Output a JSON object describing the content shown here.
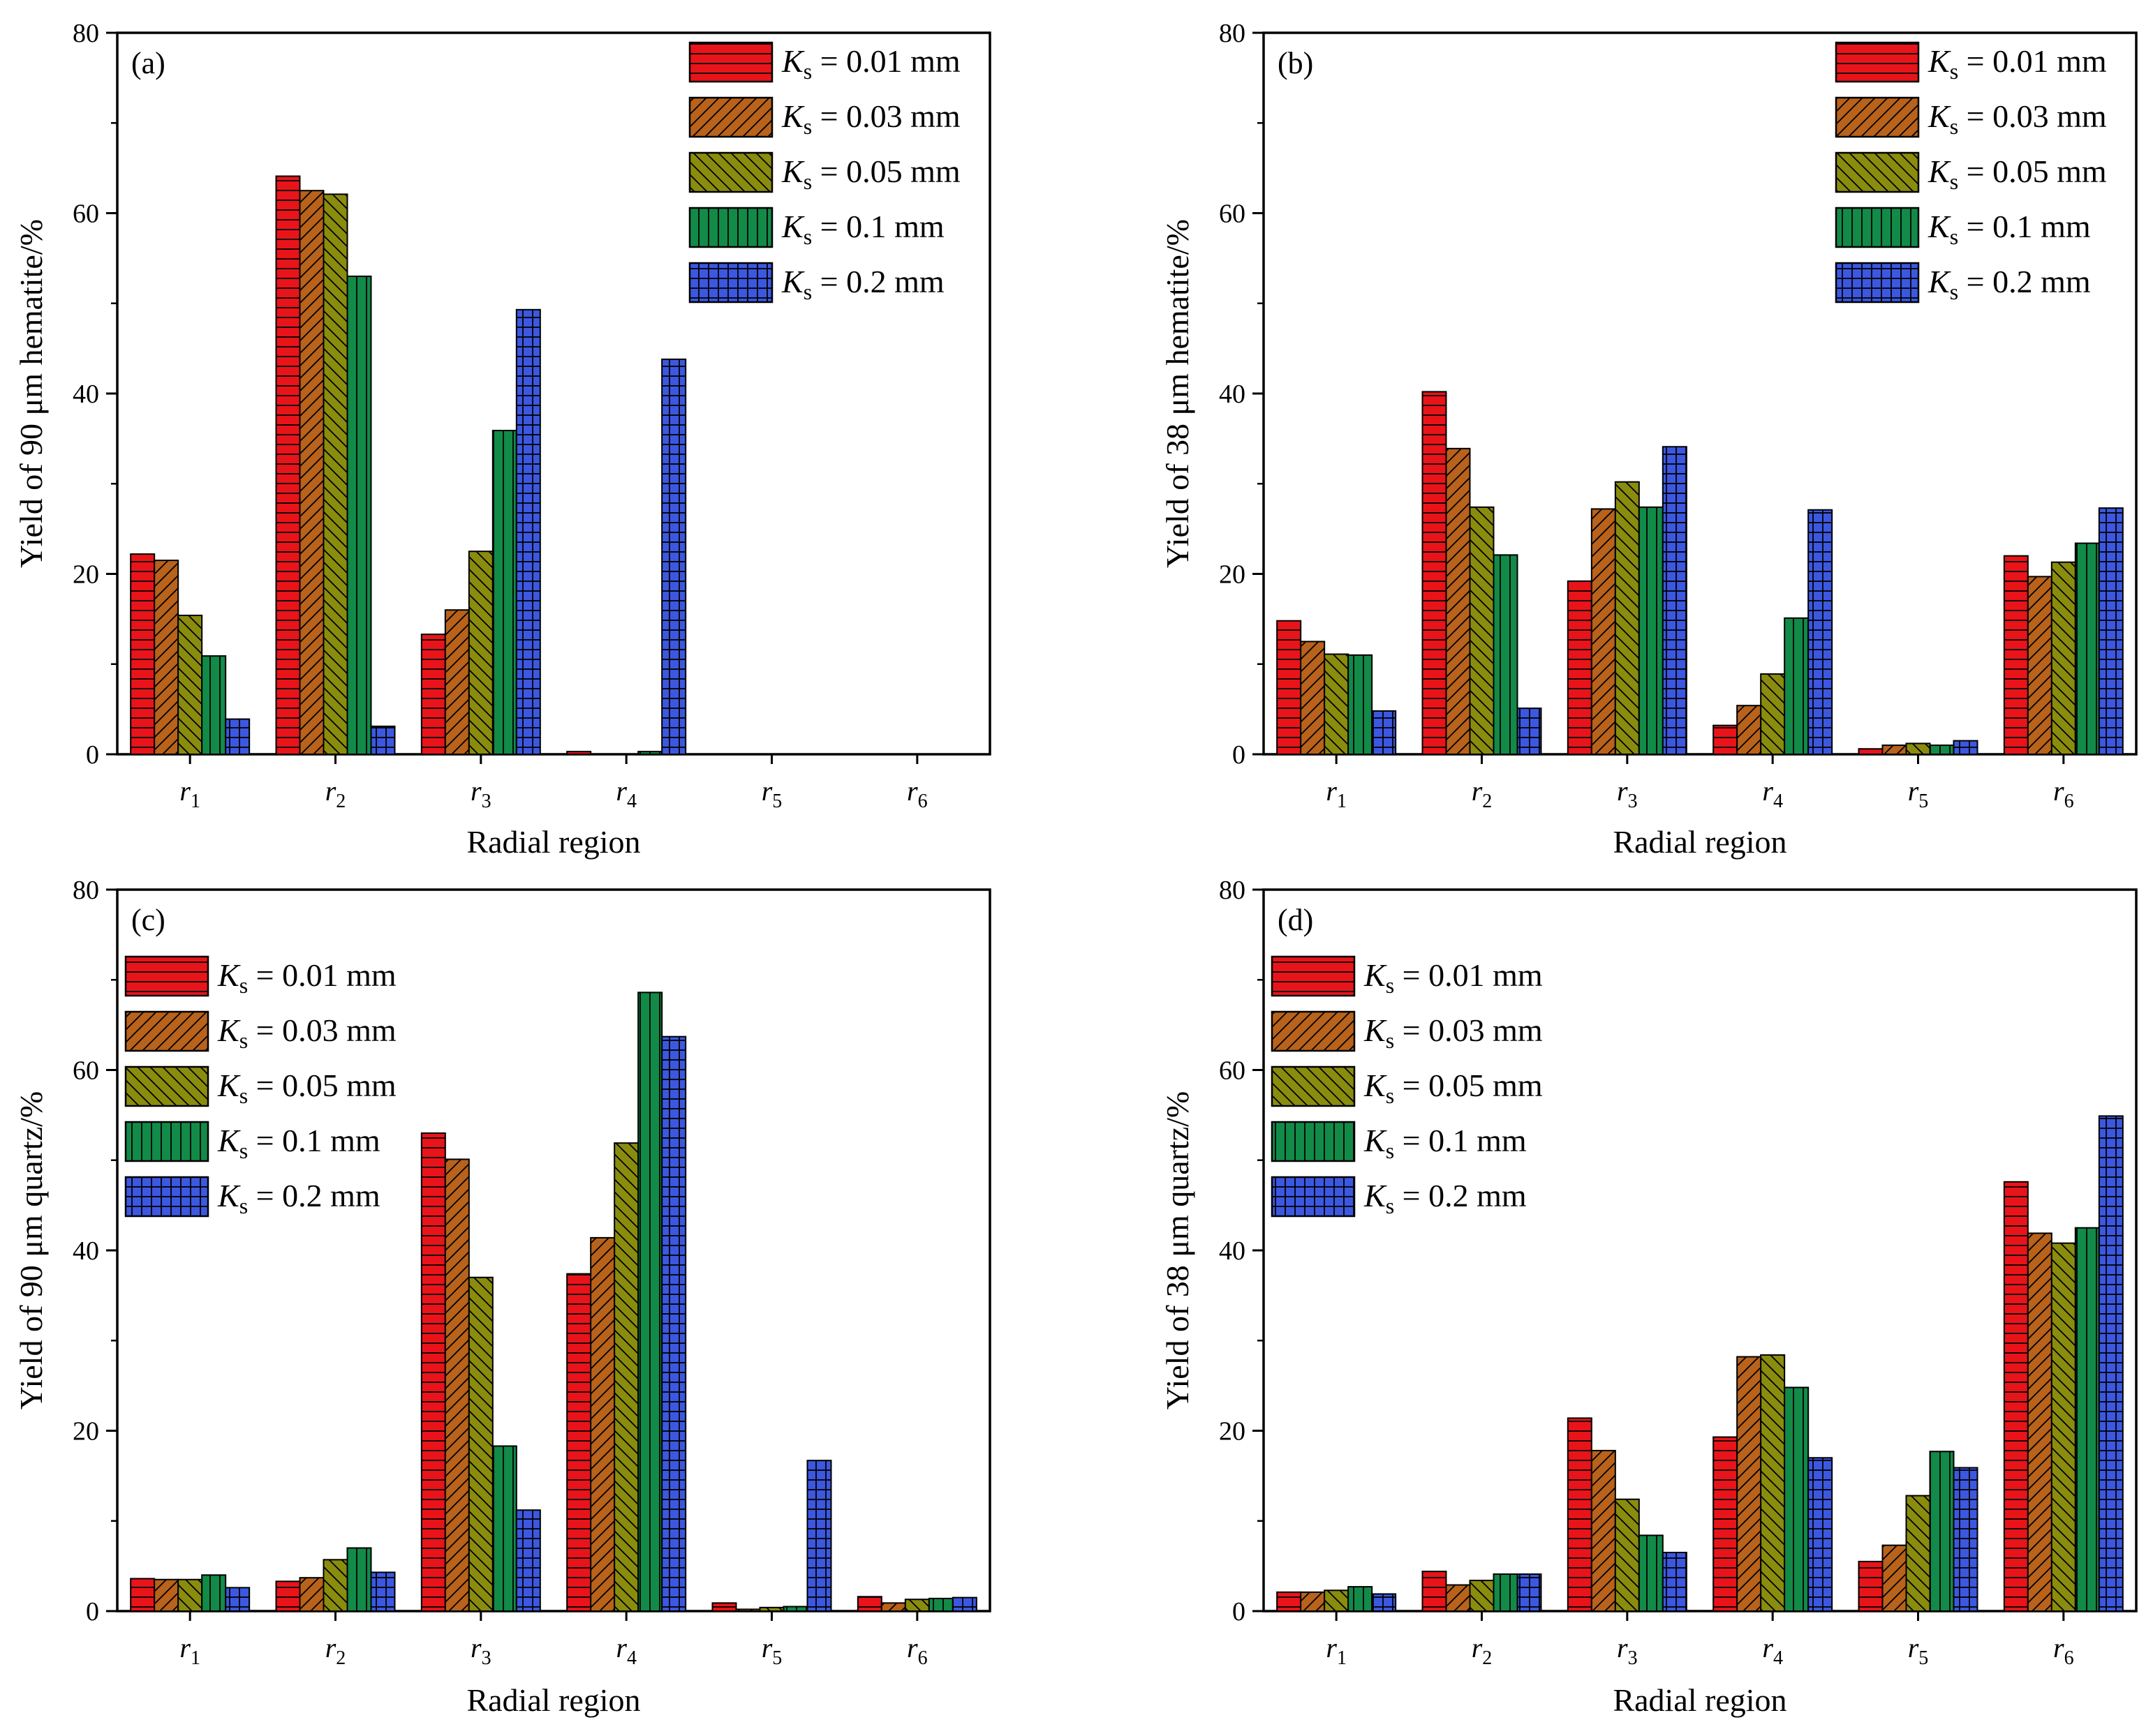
{
  "figure": {
    "styles": [
      {
        "name": "Ks = 0.01 mm",
        "ks": "0.01",
        "color": "#e8141a",
        "pattern": "hlines"
      },
      {
        "name": "Ks = 0.03 mm",
        "ks": "0.03",
        "color": "#b8621b",
        "pattern": "diag-right"
      },
      {
        "name": "Ks = 0.05 mm",
        "ks": "0.05",
        "color": "#8a8c0e",
        "pattern": "diag-left"
      },
      {
        "name": "Ks = 0.1 mm",
        "ks": "0.1",
        "color": "#128a48",
        "pattern": "vlines"
      },
      {
        "name": "Ks = 0.2 mm",
        "ks": "0.2",
        "color": "#3c58e0",
        "pattern": "grid"
      }
    ],
    "legend_symbol": "K",
    "legend_subscript": "s",
    "legend_unit": "mm"
  },
  "chart_data": [
    {
      "type": "bar",
      "panel": "(a)",
      "ylabel": "Yield of 90 μm hematite/%",
      "xlabel": "Radial region",
      "categories": [
        "r1",
        "r2",
        "r3",
        "r4",
        "r5",
        "r6"
      ],
      "ylim": [
        0,
        80
      ],
      "yticks": [
        0,
        20,
        40,
        60,
        80
      ],
      "legend_position": "top-right",
      "series": [
        {
          "name": "Ks = 0.01 mm",
          "values": [
            22.2,
            64.1,
            13.3,
            0.3,
            0,
            0
          ]
        },
        {
          "name": "Ks = 0.03 mm",
          "values": [
            21.5,
            62.5,
            16.0,
            0,
            0,
            0
          ]
        },
        {
          "name": "Ks = 0.05 mm",
          "values": [
            15.4,
            62.1,
            22.5,
            0,
            0,
            0
          ]
        },
        {
          "name": "Ks = 0.1 mm",
          "values": [
            10.9,
            53.0,
            35.9,
            0.3,
            0,
            0
          ]
        },
        {
          "name": "Ks = 0.2 mm",
          "values": [
            3.9,
            3.1,
            49.3,
            43.8,
            0,
            0
          ]
        }
      ]
    },
    {
      "type": "bar",
      "panel": "(b)",
      "ylabel": "Yield of 38 μm hematite/%",
      "xlabel": "Radial region",
      "categories": [
        "r1",
        "r2",
        "r3",
        "r4",
        "r5",
        "r6"
      ],
      "ylim": [
        0,
        80
      ],
      "yticks": [
        0,
        20,
        40,
        60,
        80
      ],
      "legend_position": "top-right",
      "series": [
        {
          "name": "Ks = 0.01 mm",
          "values": [
            14.8,
            40.2,
            19.2,
            3.2,
            0.6,
            22.0
          ]
        },
        {
          "name": "Ks = 0.03 mm",
          "values": [
            12.5,
            33.9,
            27.2,
            5.4,
            1.0,
            19.7
          ]
        },
        {
          "name": "Ks = 0.05 mm",
          "values": [
            11.1,
            27.4,
            30.2,
            8.9,
            1.2,
            21.3
          ]
        },
        {
          "name": "Ks = 0.1 mm",
          "values": [
            11.0,
            22.1,
            27.4,
            15.1,
            1.0,
            23.4
          ]
        },
        {
          "name": "Ks = 0.2 mm",
          "values": [
            4.8,
            5.1,
            34.1,
            27.1,
            1.5,
            27.3
          ]
        }
      ]
    },
    {
      "type": "bar",
      "panel": "(c)",
      "ylabel": "Yield of 90 μm quartz/%",
      "xlabel": "Radial region",
      "categories": [
        "r1",
        "r2",
        "r3",
        "r4",
        "r5",
        "r6"
      ],
      "ylim": [
        0,
        80
      ],
      "yticks": [
        0,
        20,
        40,
        60,
        80
      ],
      "legend_position": "top-left",
      "series": [
        {
          "name": "Ks = 0.01 mm",
          "values": [
            3.6,
            3.3,
            53.0,
            37.4,
            0.9,
            1.6
          ]
        },
        {
          "name": "Ks = 0.03 mm",
          "values": [
            3.5,
            3.7,
            50.1,
            41.4,
            0.2,
            0.9
          ]
        },
        {
          "name": "Ks = 0.05 mm",
          "values": [
            3.5,
            5.7,
            37.0,
            51.9,
            0.4,
            1.3
          ]
        },
        {
          "name": "Ks = 0.1 mm",
          "values": [
            4.0,
            7.0,
            18.3,
            68.6,
            0.5,
            1.4
          ]
        },
        {
          "name": "Ks = 0.2 mm",
          "values": [
            2.6,
            4.3,
            11.2,
            63.7,
            16.7,
            1.5
          ]
        }
      ]
    },
    {
      "type": "bar",
      "panel": "(d)",
      "ylabel": "Yield of 38 μm quartz/%",
      "xlabel": "Radial region",
      "categories": [
        "r1",
        "r2",
        "r3",
        "r4",
        "r5",
        "r6"
      ],
      "ylim": [
        0,
        80
      ],
      "yticks": [
        0,
        20,
        40,
        60,
        80
      ],
      "legend_position": "top-left",
      "series": [
        {
          "name": "Ks = 0.01 mm",
          "values": [
            2.1,
            4.4,
            21.4,
            19.3,
            5.5,
            47.6
          ]
        },
        {
          "name": "Ks = 0.03 mm",
          "values": [
            2.1,
            2.9,
            17.8,
            28.2,
            7.3,
            41.9
          ]
        },
        {
          "name": "Ks = 0.05 mm",
          "values": [
            2.3,
            3.4,
            12.4,
            28.4,
            12.8,
            40.8
          ]
        },
        {
          "name": "Ks = 0.1 mm",
          "values": [
            2.7,
            4.1,
            8.4,
            24.8,
            17.7,
            42.5
          ]
        },
        {
          "name": "Ks = 0.2 mm",
          "values": [
            1.9,
            4.1,
            6.5,
            17.0,
            15.9,
            54.9
          ]
        }
      ]
    }
  ]
}
